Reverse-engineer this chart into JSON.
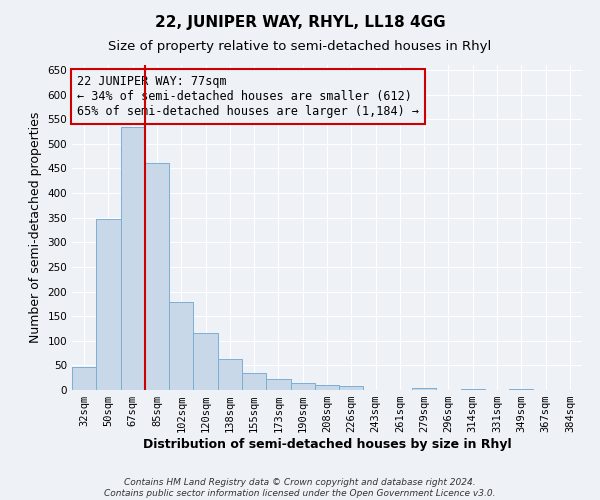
{
  "title": "22, JUNIPER WAY, RHYL, LL18 4GG",
  "subtitle": "Size of property relative to semi-detached houses in Rhyl",
  "xlabel": "Distribution of semi-detached houses by size in Rhyl",
  "ylabel": "Number of semi-detached properties",
  "bar_labels": [
    "32sqm",
    "50sqm",
    "67sqm",
    "85sqm",
    "102sqm",
    "120sqm",
    "138sqm",
    "155sqm",
    "173sqm",
    "190sqm",
    "208sqm",
    "226sqm",
    "243sqm",
    "261sqm",
    "279sqm",
    "296sqm",
    "314sqm",
    "331sqm",
    "349sqm",
    "367sqm",
    "384sqm"
  ],
  "bar_values": [
    47,
    348,
    535,
    462,
    178,
    115,
    62,
    35,
    22,
    15,
    10,
    8,
    0,
    0,
    5,
    0,
    3,
    0,
    2,
    0,
    0
  ],
  "bar_color": "#c8d8e8",
  "bar_edge_color": "#7bafd4",
  "property_label": "22 JUNIPER WAY: 77sqm",
  "pct_smaller": 34,
  "pct_smaller_count": 612,
  "pct_larger": 65,
  "pct_larger_count": 1184,
  "vline_color": "#cc0000",
  "annotation_box_color": "#cc0000",
  "ylim": [
    0,
    660
  ],
  "yticks": [
    0,
    50,
    100,
    150,
    200,
    250,
    300,
    350,
    400,
    450,
    500,
    550,
    600,
    650
  ],
  "background_color": "#eef2f7",
  "grid_color": "#ffffff",
  "footer_line1": "Contains HM Land Registry data © Crown copyright and database right 2024.",
  "footer_line2": "Contains public sector information licensed under the Open Government Licence v3.0.",
  "title_fontsize": 11,
  "subtitle_fontsize": 9.5,
  "axis_label_fontsize": 9,
  "tick_fontsize": 7.5,
  "annotation_fontsize": 8.5,
  "footer_fontsize": 6.5,
  "vline_bar_index": 2
}
